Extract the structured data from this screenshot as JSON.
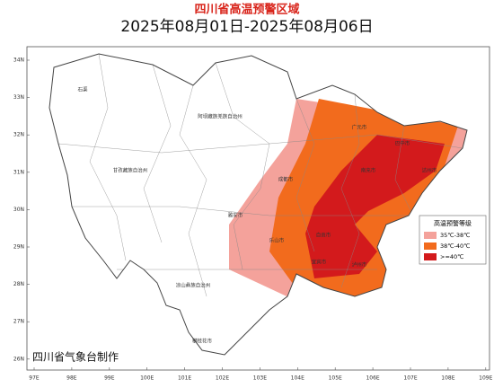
{
  "map": {
    "title": "四川省高温预警区域",
    "subtitle": "2025年08月01日-2025年08月06日",
    "lat_labels": [
      "34N",
      "33N",
      "32N",
      "31N",
      "30N",
      "29N",
      "28N",
      "27N",
      "26N"
    ],
    "lon_labels": [
      "97E",
      "98E",
      "99E",
      "100E",
      "101E",
      "102E",
      "103E",
      "104E",
      "105E",
      "106E",
      "107E",
      "108E",
      "109E"
    ],
    "legend": {
      "title": "高温预警等级",
      "items": [
        {
          "label": "35℃-38℃",
          "color": "#f4a29b"
        },
        {
          "label": "38℃-40℃",
          "color": "#f26b1d"
        },
        {
          "label": ">=40℃",
          "color": "#d31a1c"
        }
      ]
    },
    "places": [
      "石渠",
      "阿坝藏族羌族自治州",
      "甘孜藏族自治州",
      "广元市",
      "巴中市",
      "达州市",
      "南充市",
      "成都市",
      "雅安市",
      "乐山市",
      "自贡市",
      "泸州市",
      "宜宾市",
      "凉山彝族自治州",
      "攀枝花市"
    ],
    "credit": "四川省气象台制作"
  }
}
